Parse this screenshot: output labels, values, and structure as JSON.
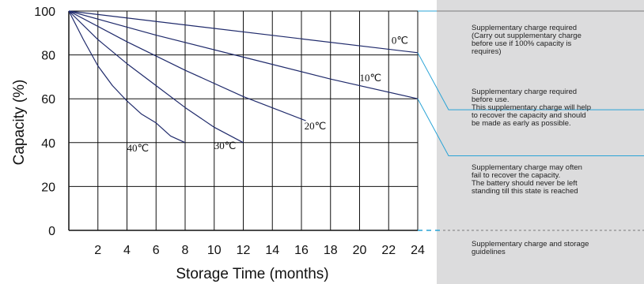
{
  "chart_data": {
    "type": "line",
    "xlabel": "Storage Time (months)",
    "ylabel": "Capacity  (%)",
    "xlim": [
      0,
      24
    ],
    "ylim": [
      0,
      100
    ],
    "x_ticks": [
      2,
      4,
      6,
      8,
      10,
      12,
      14,
      16,
      18,
      20,
      22,
      24
    ],
    "y_ticks": [
      0,
      20,
      40,
      60,
      80,
      100
    ],
    "grid": true,
    "series": [
      {
        "name": "0℃",
        "x": [
          0,
          24
        ],
        "y": [
          100,
          81
        ]
      },
      {
        "name": "10℃",
        "x": [
          0,
          6,
          12,
          18,
          24
        ],
        "y": [
          100,
          89,
          79,
          69,
          60
        ]
      },
      {
        "name": "20℃",
        "x": [
          0,
          4,
          8,
          12,
          16.3
        ],
        "y": [
          100,
          86,
          73,
          61,
          50
        ]
      },
      {
        "name": "30℃",
        "x": [
          0,
          2,
          4,
          6,
          8,
          10,
          12
        ],
        "y": [
          100,
          87,
          76,
          66,
          56,
          47,
          40
        ]
      },
      {
        "name": "40℃",
        "x": [
          0,
          1,
          2,
          3,
          4,
          5,
          6,
          7,
          8
        ],
        "y": [
          100,
          87,
          75,
          66,
          59,
          53,
          49,
          43,
          40
        ]
      }
    ],
    "curve_label_points": [
      {
        "name": "0℃",
        "x": 22.2,
        "y": 85
      },
      {
        "name": "10℃",
        "x": 20.0,
        "y": 68
      },
      {
        "name": "20℃",
        "x": 16.2,
        "y": 46
      },
      {
        "name": "30℃",
        "x": 10.0,
        "y": 37
      },
      {
        "name": "40℃",
        "x": 4.0,
        "y": 36
      }
    ]
  },
  "notes": [
    {
      "text": "Supplementary charge required\n(Carry out supplementary charge\nbefore use if 100% capacity is\nrequires)"
    },
    {
      "text": "Supplementary charge required\nbefore use.\nThis supplementary charge will help\nto recover the capacity and should\nbe made  as early as possible."
    },
    {
      "text": "Supplementary charge may often\nfail to recover the capacity.\nThe battery should never be left\nstanding till this state is reached"
    },
    {
      "text": "Supplementary charge and storage\nguidelines"
    }
  ],
  "colors": {
    "curve": "#1f2a6b",
    "grid": "#111111",
    "guide": "#29a3d6",
    "panel": "#dcdcdd"
  }
}
